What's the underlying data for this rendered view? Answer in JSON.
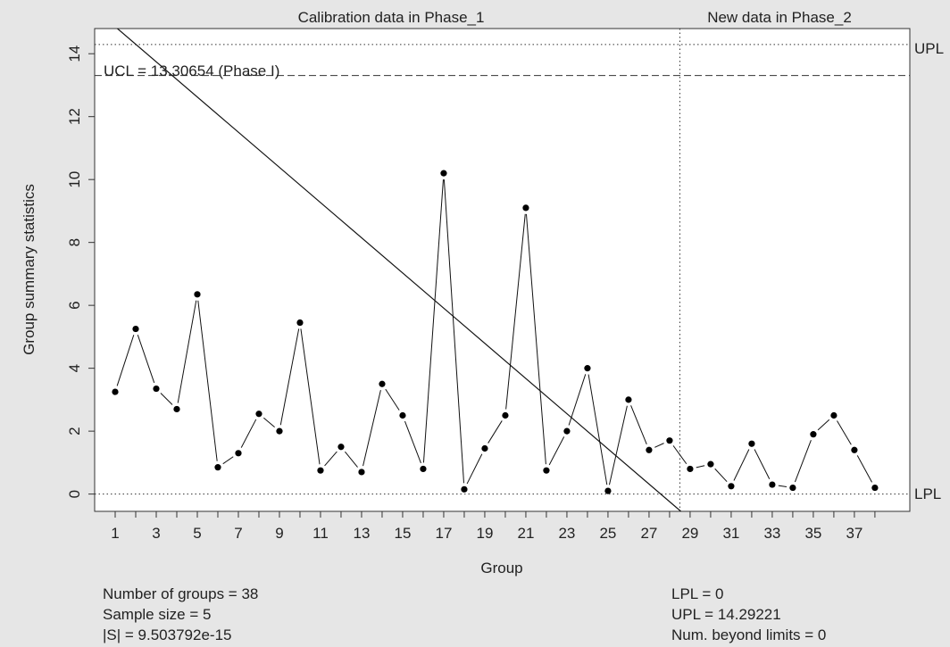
{
  "chart_data": {
    "type": "line",
    "title_left": "Calibration data in Phase_1",
    "title_right": "New data in Phase_2",
    "xlabel": "Group",
    "ylabel": "Group summary statistics",
    "xlim": [
      0,
      39.7
    ],
    "ylim": [
      -0.55,
      14.8
    ],
    "x_ticks": [
      1,
      3,
      5,
      7,
      9,
      11,
      13,
      15,
      17,
      19,
      21,
      23,
      25,
      27,
      29,
      31,
      33,
      35,
      37
    ],
    "y_ticks": [
      0,
      2,
      4,
      6,
      8,
      10,
      12,
      14
    ],
    "x": [
      1,
      2,
      3,
      4,
      5,
      6,
      7,
      8,
      9,
      10,
      11,
      12,
      13,
      14,
      15,
      16,
      17,
      18,
      19,
      20,
      21,
      22,
      23,
      24,
      25,
      26,
      27,
      28,
      29,
      30,
      31,
      32,
      33,
      34,
      35,
      36,
      37,
      38
    ],
    "values": [
      3.25,
      5.25,
      3.35,
      2.7,
      6.35,
      0.85,
      1.3,
      2.55,
      2.0,
      5.45,
      0.75,
      1.5,
      0.7,
      3.5,
      2.5,
      0.8,
      10.2,
      0.15,
      1.45,
      2.5,
      9.1,
      0.75,
      2.0,
      4.0,
      0.1,
      3.0,
      1.4,
      1.7,
      0.8,
      0.95,
      0.25,
      1.6,
      0.3,
      0.2,
      1.9,
      2.5,
      1.4,
      0.2
    ],
    "phase_boundary_x": 28.5,
    "ucl": 13.30654,
    "upl": 14.29221,
    "lpl": 0,
    "ucl_label": "UCL = 13.30654 (Phase I)",
    "upl_label": "UPL",
    "lpl_label": "LPL",
    "diagonal_line": {
      "x1": 0,
      "y1": 15.42,
      "x2": 28.55,
      "y2": -0.55
    },
    "grid": false
  },
  "stats": {
    "left": [
      "Number of groups = 38",
      "Sample size = 5",
      "|S| = 9.503792e-15"
    ],
    "right": [
      "LPL = 0",
      "UPL = 14.29221",
      "Num. beyond limits = 0"
    ]
  }
}
